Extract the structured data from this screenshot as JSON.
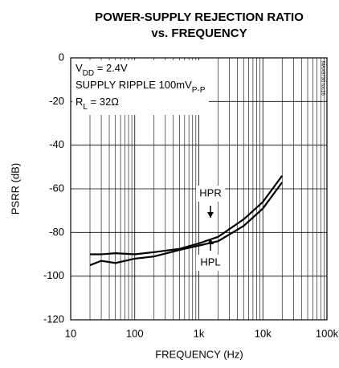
{
  "chart_data": {
    "type": "line",
    "title": [
      "POWER-SUPPLY REJECTION RATIO",
      "vs. FREQUENCY"
    ],
    "x_label": "FREQUENCY (Hz)",
    "y_label": "PSRR (dB)",
    "side_note": "MAX9730 toc16",
    "conditions": [
      [
        {
          "text": "V"
        },
        {
          "text": "DD",
          "sub": true
        },
        {
          "text": " = 2.4V"
        }
      ],
      [
        {
          "text": "SUPPLY RIPPLE 100mV"
        },
        {
          "text": "P-P",
          "sub": true
        }
      ],
      [
        {
          "text": "R"
        },
        {
          "text": "L",
          "sub": true
        },
        {
          "text": " = 32Ω"
        }
      ]
    ],
    "x_log": true,
    "grid": true,
    "minor_grid": true,
    "xlim": [
      10,
      100000
    ],
    "xticks": [
      10,
      100,
      {
        "value": 1000,
        "label": "1k"
      },
      {
        "value": 10000,
        "label": "10k"
      },
      {
        "value": 100000,
        "label": "100k"
      }
    ],
    "ylim": [
      -120,
      0
    ],
    "yticks": [
      -120,
      -100,
      -80,
      -60,
      -40,
      -20,
      0
    ],
    "x": [
      20,
      30,
      50,
      100,
      200,
      500,
      1000,
      2000,
      5000,
      10000,
      20000
    ],
    "series": [
      {
        "name": "HPR",
        "color": "#000000",
        "values": [
          -90,
          -90,
          -89.5,
          -90,
          -89,
          -87.5,
          -85,
          -82,
          -74,
          -66,
          -54
        ]
      },
      {
        "name": "HPL",
        "color": "#000000",
        "values": [
          -95,
          -93,
          -94,
          -92,
          -91,
          -88,
          -86,
          -84,
          -77,
          -69,
          -57
        ]
      }
    ]
  }
}
